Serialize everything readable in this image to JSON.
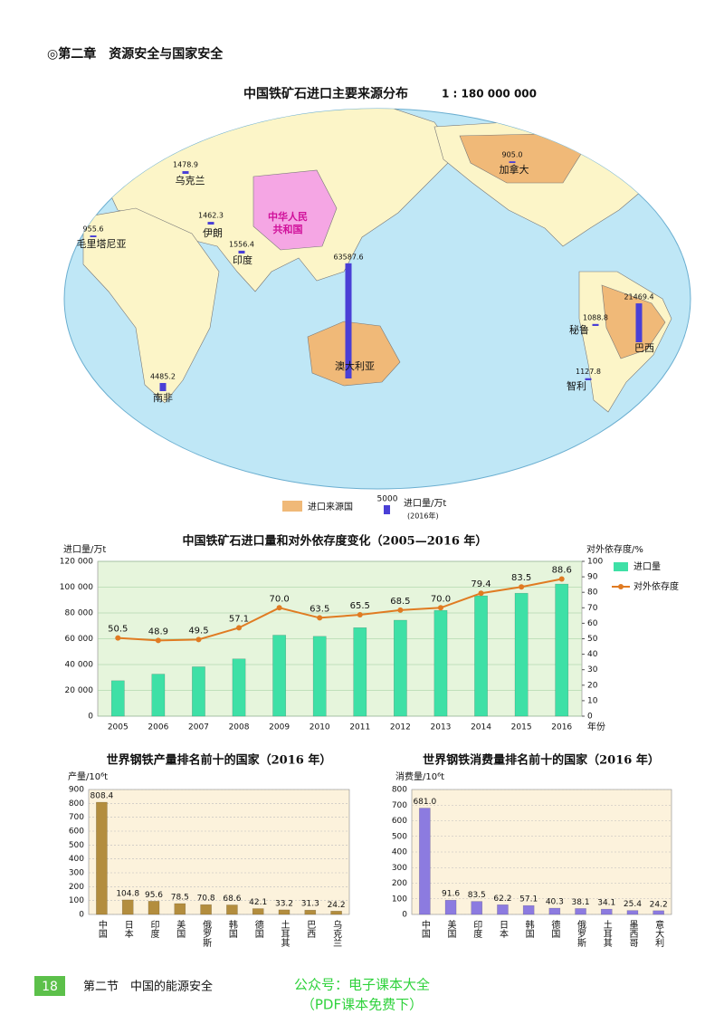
{
  "header": {
    "chapter": "◎第二章　资源安全与国家安全"
  },
  "map": {
    "title": "中国铁矿石进口主要来源分布",
    "scale": "1 : 180 000 000",
    "china_label": [
      "中华人民",
      "共和国"
    ],
    "sources": [
      {
        "name": "乌克兰",
        "value": 1478.9
      },
      {
        "name": "伊朗",
        "value": 1462.3
      },
      {
        "name": "毛里塔尼亚",
        "value": 955.6
      },
      {
        "name": "印度",
        "value": 1556.4
      },
      {
        "name": "澳大利亚",
        "value": 63587.6
      },
      {
        "name": "南非",
        "value": 4485.2
      },
      {
        "name": "加拿大",
        "value": 905,
        "value_label": "905.0"
      },
      {
        "name": "秘鲁",
        "value": 1088.8
      },
      {
        "name": "巴西",
        "value": 21469.4
      },
      {
        "name": "智利",
        "value": 1127.8
      }
    ],
    "legend": {
      "source_label": "进口来源国",
      "bar_value": 5000,
      "bar_label": "进口量/万t",
      "year": "(2016年)"
    },
    "bar_color": "#4a3fd6",
    "source_color": "#f0b978",
    "china_color": "#f5a6e4"
  },
  "chart_data": [
    {
      "type": "combo",
      "title": "中国铁矿石进口量和对外依存度变化（2005—2016 年）",
      "y_label": "进口量/万t",
      "y2_label": "对外依存度/%",
      "x_label": "年份",
      "categories": [
        "2005",
        "2006",
        "2007",
        "2008",
        "2009",
        "2010",
        "2011",
        "2012",
        "2013",
        "2014",
        "2015",
        "2016"
      ],
      "series": [
        {
          "name": "进口量",
          "type": "bar",
          "color": "#3ee0a6",
          "values": [
            27500,
            32600,
            38300,
            44400,
            62800,
            61900,
            68600,
            74400,
            82000,
            93300,
            95300,
            102400
          ]
        },
        {
          "name": "对外依存度",
          "type": "line",
          "axis": "y2",
          "color": "#e07b22",
          "values": [
            50.5,
            48.9,
            49.5,
            57.1,
            70.0,
            63.5,
            65.5,
            68.5,
            70.0,
            79.4,
            83.5,
            88.6
          ],
          "value_labels": [
            "50.5",
            "48.9",
            "49.5",
            "57.1",
            "70.0",
            "63.5",
            "65.5",
            "68.5",
            "70.0",
            "79.4",
            "83.5",
            "88.6"
          ]
        }
      ],
      "ylim": [
        0,
        120000
      ],
      "yticks": [
        0,
        {
          "value": 20000,
          "label": "20 000"
        },
        {
          "value": 40000,
          "label": "40 000"
        },
        {
          "value": 60000,
          "label": "60 000"
        },
        {
          "value": 80000,
          "label": "80 000"
        },
        {
          "value": 100000,
          "label": "100 000"
        },
        {
          "value": 120000,
          "label": "120 000"
        }
      ],
      "y2lim": [
        0,
        100
      ],
      "y2ticks": [
        0,
        10,
        20,
        30,
        40,
        50,
        60,
        70,
        80,
        90,
        100
      ],
      "grid": true,
      "legend": "right",
      "background": "#e6f5dc"
    },
    {
      "type": "bar",
      "title": "世界钢铁产量排名前十的国家（2016 年）",
      "y_label": "产量/10⁶t",
      "categories": [
        "中国",
        "日本",
        "印度",
        "美国",
        "俄罗斯",
        "韩国",
        "德国",
        "土耳其",
        "巴西",
        "乌克兰"
      ],
      "values": [
        808.4,
        104.8,
        95.6,
        78.5,
        70.8,
        68.6,
        42.1,
        33.2,
        31.3,
        24.2
      ],
      "color": "#b38d3e",
      "ylim": [
        0,
        900
      ],
      "yticks": [
        0,
        100,
        200,
        300,
        400,
        500,
        600,
        700,
        800,
        900
      ],
      "grid": true,
      "background": "#fcf2dc"
    },
    {
      "type": "bar",
      "title": "世界钢铁消费量排名前十的国家（2016 年）",
      "y_label": "消费量/10⁶t",
      "categories": [
        "中国",
        "美国",
        "印度",
        "日本",
        "韩国",
        "德国",
        "俄罗斯",
        "土耳其",
        "墨西哥",
        "意大利"
      ],
      "values": [
        681.0,
        91.6,
        83.5,
        62.2,
        57.1,
        40.3,
        38.1,
        34.1,
        25.4,
        24.2
      ],
      "value_labels": [
        "681.0",
        "91.6",
        "83.5",
        "62.2",
        "57.1",
        "40.3",
        "38.1",
        "34.1",
        "25.4",
        "24.2"
      ],
      "color": "#8c7be0",
      "ylim": [
        0,
        800
      ],
      "yticks": [
        0,
        100,
        200,
        300,
        400,
        500,
        600,
        700,
        800
      ],
      "grid": true,
      "background": "#fcf2dc"
    }
  ],
  "footer": {
    "page": "18",
    "section": "第二节　中国的能源安全",
    "watermark": [
      "公众号：电子课本大全",
      "（PDF课本免费下）"
    ]
  }
}
